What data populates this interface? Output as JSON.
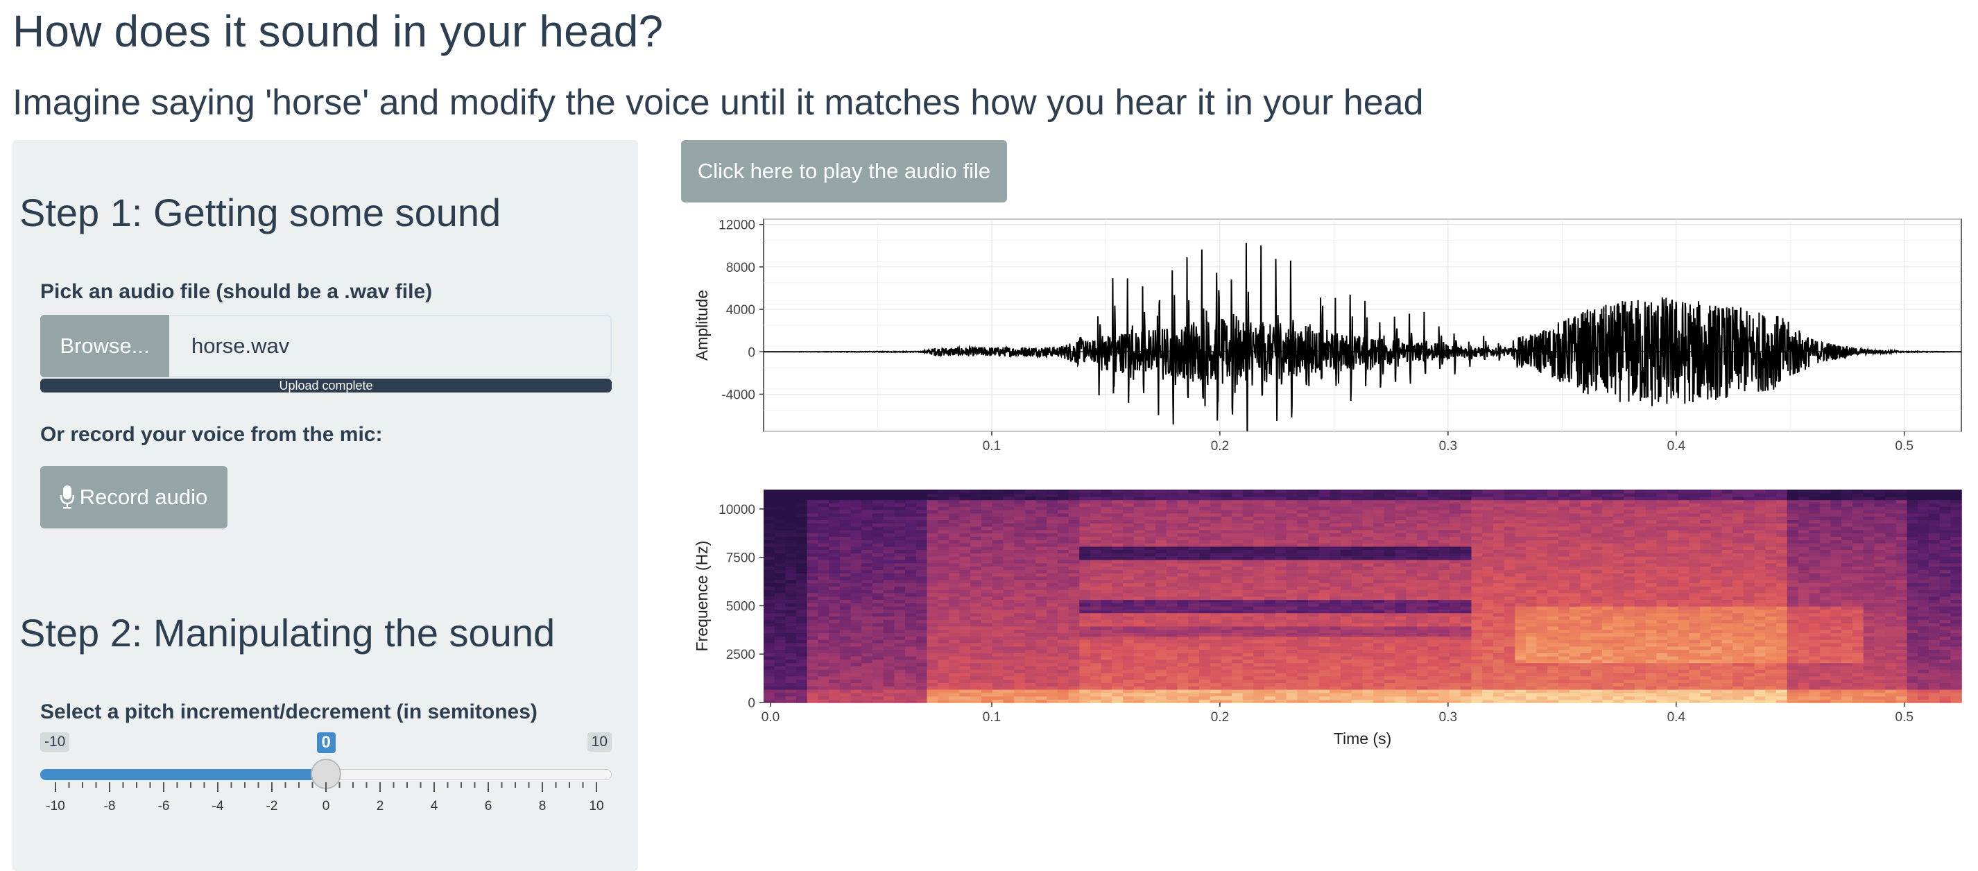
{
  "page": {
    "title": "How does it sound in your head?",
    "subtitle": "Imagine saying 'horse' and modify the voice until it matches how you hear it in your head"
  },
  "sidebar": {
    "step1_title": "Step 1: Getting some sound",
    "file_label": "Pick an audio file (should be a .wav file)",
    "browse_label": "Browse...",
    "file_value": "horse.wav",
    "upload_status": "Upload complete",
    "upload_progress": 1.0,
    "record_label_text": "Or record your voice from the mic:",
    "record_button": "Record audio",
    "record_icon": "microphone-icon",
    "step2_title": "Step 2: Manipulating the sound",
    "pitch_label": "Select a pitch increment/decrement (in semitones)",
    "pitch_slider": {
      "min": -10,
      "max": 10,
      "value": 0,
      "min_label": "-10",
      "max_label": "10",
      "value_label": "0",
      "tick_labels": [
        "-10",
        "-8",
        "-6",
        "-4",
        "-2",
        "0",
        "2",
        "4",
        "6",
        "8",
        "10"
      ]
    }
  },
  "main": {
    "play_button": "Click here to play the audio file"
  },
  "colors": {
    "primary_text": "#2c3e50",
    "sidebar_bg": "#ecf0f1",
    "button_bg": "#95a5a6",
    "slider_accent": "#428bca"
  },
  "chart_data": [
    {
      "type": "line",
      "x_range": [
        0,
        0.525
      ],
      "ylim": [
        -7500,
        12500
      ],
      "ylabel": "Amplitude",
      "xlabel": "",
      "x_ticks": [
        0.1,
        0.2,
        0.3,
        0.4,
        0.5
      ],
      "y_ticks": [
        -4000,
        0,
        4000,
        8000,
        12000
      ],
      "grid": true,
      "series": [
        {
          "color": "#000000",
          "envelope": [
            {
              "t": 0.0,
              "a": 0
            },
            {
              "t": 0.07,
              "a": 40
            },
            {
              "t": 0.075,
              "a": 400
            },
            {
              "t": 0.13,
              "a": 500
            },
            {
              "t": 0.14,
              "a": 1500
            },
            {
              "t": 0.15,
              "a": 7500
            },
            {
              "t": 0.18,
              "a": 9500
            },
            {
              "t": 0.2,
              "a": 12000
            },
            {
              "t": 0.23,
              "a": 9000
            },
            {
              "t": 0.26,
              "a": 6000
            },
            {
              "t": 0.29,
              "a": 3500
            },
            {
              "t": 0.32,
              "a": 1500
            },
            {
              "t": 0.335,
              "a": 1500
            },
            {
              "t": 0.36,
              "a": 4000
            },
            {
              "t": 0.39,
              "a": 5500
            },
            {
              "t": 0.42,
              "a": 4500
            },
            {
              "t": 0.445,
              "a": 3500
            },
            {
              "t": 0.46,
              "a": 1200
            },
            {
              "t": 0.48,
              "a": 300
            },
            {
              "t": 0.5,
              "a": 50
            },
            {
              "t": 0.525,
              "a": 0
            }
          ]
        }
      ]
    },
    {
      "type": "heatmap",
      "x_range": [
        0,
        0.525
      ],
      "ylim": [
        0,
        11000
      ],
      "xlabel": "Time (s)",
      "ylabel": "Frequence (Hz)",
      "x_tick_labels": [
        "0.0",
        "0.1",
        "0.2",
        "0.3",
        "0.4",
        "0.5"
      ],
      "y_ticks": [
        0,
        2500,
        5000,
        7500,
        10000
      ],
      "colorscale": [
        "#2a1248",
        "#5b1f6e",
        "#a23a6e",
        "#d9565e",
        "#f08a5d",
        "#fbd8a0"
      ]
    }
  ]
}
